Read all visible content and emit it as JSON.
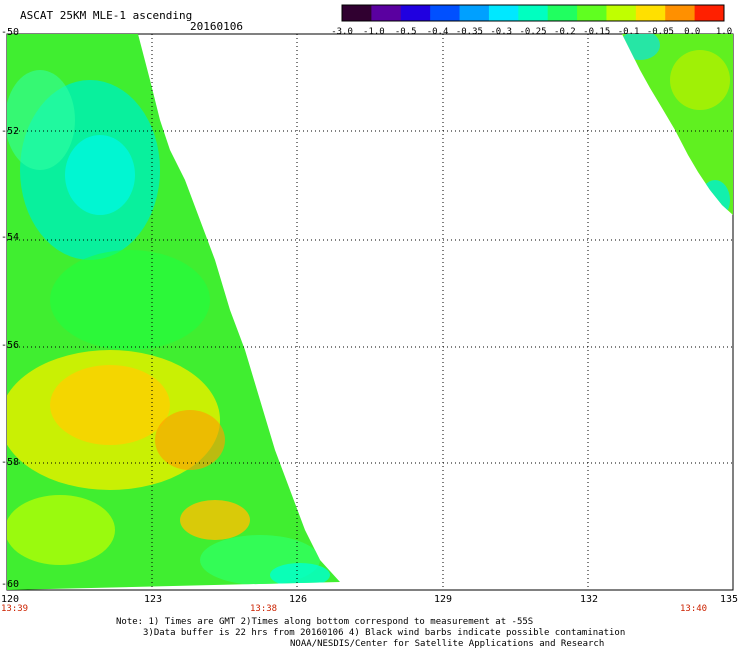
{
  "title": "ASCAT 25KM MLE-1 ascending",
  "date": "20160106",
  "colorbar": {
    "ticks": [
      "-3.0",
      "-1.0",
      "-0.5",
      "-0.4",
      "-0.35",
      "-0.3",
      "-0.25",
      "-0.2",
      "-0.15",
      "-0.1",
      "-0.05",
      "0.0",
      "1.0"
    ],
    "colors": [
      "#300030",
      "#5a00a0",
      "#2000e0",
      "#0050ff",
      "#00a0ff",
      "#00e8ff",
      "#00ffc0",
      "#20ff60",
      "#60ff20",
      "#c0ff00",
      "#ffe000",
      "#ff9000",
      "#ff2000"
    ]
  },
  "axes": {
    "lat_labels": [
      "-50",
      "-52",
      "-54",
      "-56",
      "-58",
      "-60"
    ],
    "lon_labels": [
      "120",
      "123",
      "126",
      "129",
      "132",
      "135"
    ],
    "time_labels": [
      "13:39",
      "13:38",
      "13:40"
    ]
  },
  "notes": {
    "line1": "Note: 1) Times are GMT 2)Times along bottom correspond to measurement at -55S",
    "line2": "3)Data buffer is 22 hrs from 20160106 4) Black wind barbs indicate possible contamination",
    "line3": "NOAA/NESDIS/Center for Satellite Applications and Research"
  }
}
